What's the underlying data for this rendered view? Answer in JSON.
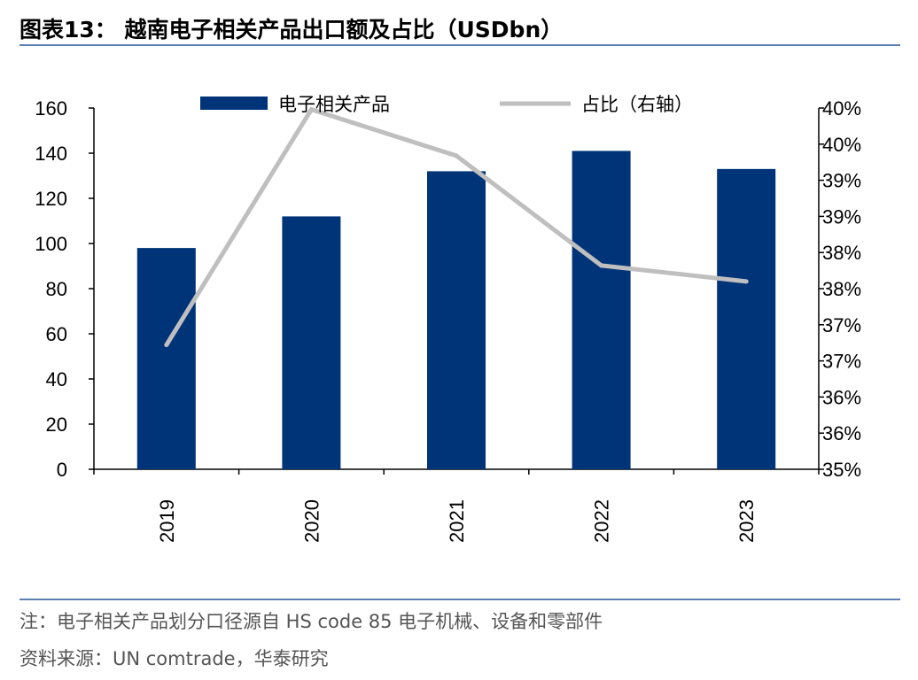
{
  "figure": {
    "title": "图表13： 越南电子相关产品出口额及占比（USDbn）",
    "note": "注：电子相关产品划分口径源自 HS code 85 电子机械、设备和零部件",
    "source": "资料来源：UN comtrade，华泰研究"
  },
  "chart_data": {
    "type": "bar",
    "categories": [
      "2019",
      "2020",
      "2021",
      "2022",
      "2023"
    ],
    "series": [
      {
        "name": "电子相关产品",
        "type": "bar",
        "axis": "left",
        "color": "#003478",
        "values": [
          98,
          112,
          132,
          141,
          133
        ]
      },
      {
        "name": "占比（右轴）",
        "type": "line",
        "axis": "right",
        "color": "#bfbfbf",
        "values": [
          0.3672,
          0.3998,
          0.3934,
          0.3782,
          0.376
        ]
      }
    ],
    "left_axis": {
      "range": [
        0,
        160
      ],
      "ticks": [
        "0",
        "20",
        "40",
        "60",
        "80",
        "100",
        "120",
        "140",
        "160"
      ]
    },
    "right_axis": {
      "range": [
        0.35,
        0.4
      ],
      "ticks": [
        "35%",
        "36%",
        "36%",
        "37%",
        "37%",
        "38%",
        "38%",
        "39%",
        "39%",
        "40%",
        "40%"
      ]
    },
    "xlabel": "",
    "ylabel": "",
    "grid": false,
    "legend": "top-center"
  }
}
